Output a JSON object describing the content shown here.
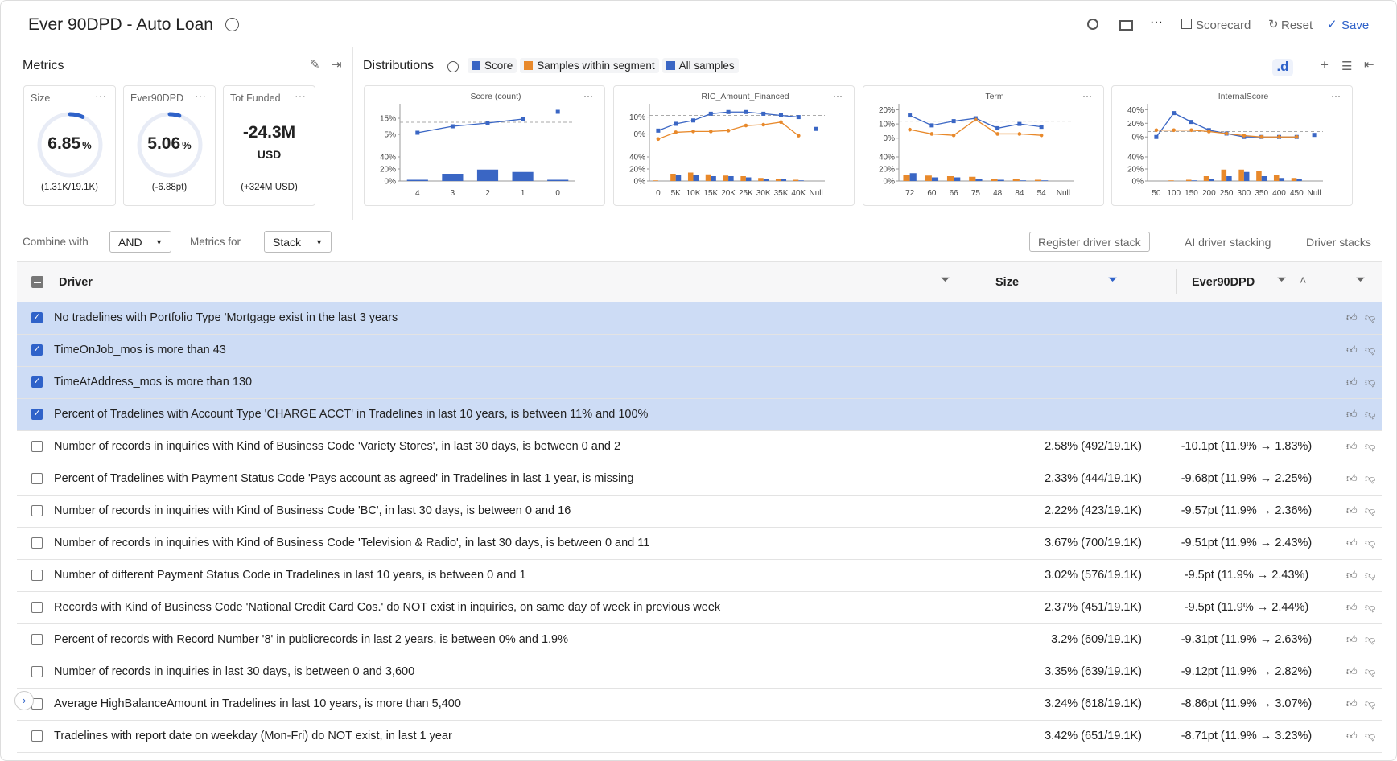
{
  "header": {
    "title": "Ever 90DPD - Auto Loan",
    "actions": [
      "Scorecard",
      "Reset",
      "Save"
    ]
  },
  "metrics": {
    "title": "Metrics",
    "cards": [
      {
        "label": "Size",
        "value": 6.85,
        "unit": "%",
        "sub": "(1.31K/19.1K)"
      },
      {
        "label": "Ever90DPD",
        "value": 5.06,
        "unit": "%",
        "sub": "(-6.88pt)"
      },
      {
        "label": "Tot Funded",
        "value": "-24.3M",
        "unit": "USD",
        "sub": "(+324M USD)"
      }
    ]
  },
  "distributions": {
    "title": "Distributions",
    "legend": [
      {
        "name": "Score",
        "color": "#3a66c4"
      },
      {
        "name": "Samples within segment",
        "color": "#e8892b"
      },
      {
        "name": "All samples",
        "color": "#3a66c4"
      }
    ],
    "charts": [
      {
        "type": "combo",
        "title": "Score (count)",
        "categories": [
          "4",
          "3",
          "2",
          "1",
          "0"
        ],
        "line_series": [
          {
            "name": "Score",
            "color": "#3a66c4",
            "values": [
              6,
              10,
              12,
              14.5,
              19
            ]
          }
        ],
        "bar_series": [
          {
            "name": "Score",
            "color": "#3a66c4",
            "values": [
              2,
              12,
              19,
              15,
              2
            ]
          }
        ],
        "ref": 12.5,
        "line_ylim": [
          0,
          22
        ],
        "line_yticks": [
          {
            "value": 5,
            "label": "5%"
          },
          {
            "value": 15,
            "label": "15%"
          }
        ],
        "bar_ylim": [
          0,
          40
        ],
        "bar_yticks": [
          {
            "value": 0,
            "label": "0%"
          },
          {
            "value": 20,
            "label": "20%"
          },
          {
            "value": 40,
            "label": "40%"
          }
        ]
      },
      {
        "type": "combo",
        "title": "RIC_Amount_Financed",
        "categories": [
          "0",
          "5K",
          "10K",
          "15K",
          "20K",
          "25K",
          "30K",
          "35K",
          "40K",
          "Null"
        ],
        "line_series": [
          {
            "name": "All samples",
            "color": "#3a66c4",
            "values": [
              2,
              6,
              8,
              12,
              13,
              13,
              12,
              11,
              10,
              3
            ]
          },
          {
            "name": "Samples within segment",
            "color": "#e8892b",
            "values": [
              -3,
              1,
              1.5,
              1.5,
              2,
              5,
              5.5,
              7,
              -1,
              null
            ]
          }
        ],
        "bar_series": [
          {
            "name": "Samples within segment",
            "color": "#e8892b",
            "values": [
              1,
              12,
              14,
              11,
              9,
              8,
              5,
              3,
              2,
              null
            ]
          },
          {
            "name": "All samples",
            "color": "#3a66c4",
            "values": [
              0,
              10,
              10,
              8,
              8,
              6,
              4,
              3,
              1,
              null
            ]
          }
        ],
        "ref": 11,
        "line_ylim": [
          -5,
          16
        ],
        "line_yticks": [
          {
            "value": 0,
            "label": "0%"
          },
          {
            "value": 10,
            "label": "10%"
          }
        ],
        "bar_ylim": [
          0,
          40
        ],
        "bar_yticks": [
          {
            "value": 0,
            "label": "0%"
          },
          {
            "value": 20,
            "label": "20%"
          },
          {
            "value": 40,
            "label": "40%"
          }
        ]
      },
      {
        "type": "combo",
        "title": "Term",
        "categories": [
          "72",
          "60",
          "66",
          "75",
          "48",
          "84",
          "54",
          "Null"
        ],
        "line_series": [
          {
            "name": "All samples",
            "color": "#3a66c4",
            "values": [
              16,
              9,
              12,
              14,
              7,
              10,
              8,
              null
            ]
          },
          {
            "name": "Samples within segment",
            "color": "#e8892b",
            "values": [
              6,
              3,
              2,
              13,
              3,
              3,
              2,
              null
            ]
          }
        ],
        "bar_series": [
          {
            "name": "Samples within segment",
            "color": "#e8892b",
            "values": [
              10,
              9,
              8,
              7,
              4,
              3,
              2,
              null
            ]
          },
          {
            "name": "All samples",
            "color": "#3a66c4",
            "values": [
              13,
              6,
              6,
              3,
              2,
              1,
              1,
              null
            ]
          }
        ],
        "ref": 12,
        "line_ylim": [
          -3,
          22
        ],
        "line_yticks": [
          {
            "value": 0,
            "label": "0%"
          },
          {
            "value": 10,
            "label": "10%"
          },
          {
            "value": 20,
            "label": "20%"
          }
        ],
        "bar_ylim": [
          0,
          40
        ],
        "bar_yticks": [
          {
            "value": 0,
            "label": "0%"
          },
          {
            "value": 20,
            "label": "20%"
          },
          {
            "value": 40,
            "label": "40%"
          }
        ]
      },
      {
        "type": "combo",
        "title": "InternalScore",
        "categories": [
          "50",
          "100",
          "150",
          "200",
          "250",
          "300",
          "350",
          "400",
          "450",
          "Null"
        ],
        "line_series": [
          {
            "name": "All samples",
            "color": "#3a66c4",
            "values": [
              0,
              35,
              22,
              10,
              5,
              0,
              0,
              0,
              0,
              3
            ]
          },
          {
            "name": "Samples within segment",
            "color": "#e8892b",
            "values": [
              10,
              10,
              10,
              8,
              5,
              2,
              0,
              0,
              0,
              null
            ]
          }
        ],
        "bar_series": [
          {
            "name": "Samples within segment",
            "color": "#e8892b",
            "values": [
              0,
              1,
              2,
              8,
              19,
              19,
              17,
              10,
              5,
              null
            ]
          },
          {
            "name": "All samples",
            "color": "#3a66c4",
            "values": [
              0,
              0,
              1,
              3,
              8,
              15,
              8,
              5,
              3,
              null
            ]
          }
        ],
        "ref": 8,
        "line_ylim": [
          -8,
          44
        ],
        "line_yticks": [
          {
            "value": 0,
            "label": "0%"
          },
          {
            "value": 20,
            "label": "20%"
          },
          {
            "value": 40,
            "label": "40%"
          }
        ],
        "bar_ylim": [
          0,
          40
        ],
        "bar_yticks": [
          {
            "value": 0,
            "label": "0%"
          },
          {
            "value": 20,
            "label": "20%"
          },
          {
            "value": 40,
            "label": "40%"
          }
        ]
      }
    ]
  },
  "controls": {
    "combine_label": "Combine with",
    "combine_value": "AND",
    "metrics_for_label": "Metrics for",
    "metrics_for_value": "Stack",
    "buttons": [
      "Register driver stack",
      "AI driver stacking",
      "Driver stacks"
    ]
  },
  "table": {
    "columns": [
      "Driver",
      "Size",
      "Ever90DPD"
    ],
    "rows": [
      {
        "driver": "No tradelines with Portfolio Type 'Mortgage exist in the last 3 years",
        "selected": true
      },
      {
        "driver": "TimeOnJob_mos is more than 43",
        "selected": true
      },
      {
        "driver": "TimeAtAddress_mos is more than 130",
        "selected": true
      },
      {
        "driver": "Percent of Tradelines with Account Type 'CHARGE ACCT' in Tradelines in last 10 years, is between 11% and 100%",
        "selected": true
      },
      {
        "driver": "Number of records in inquiries with Kind of Business Code 'Variety Stores', in last 30 days, is between 0 and 2",
        "size": "2.58% (492/19.1K)",
        "ever90dpd": "-10.1pt (11.9% → 1.83%)"
      },
      {
        "driver": "Percent of Tradelines with Payment Status Code 'Pays account as agreed' in Tradelines in last 1 year, is missing",
        "size": "2.33% (444/19.1K)",
        "ever90dpd": "-9.68pt (11.9% → 2.25%)"
      },
      {
        "driver": "Number of records in inquiries with Kind of Business Code 'BC', in last 30 days, is between 0 and 16",
        "size": "2.22% (423/19.1K)",
        "ever90dpd": "-9.57pt (11.9% → 2.36%)"
      },
      {
        "driver": "Number of records in inquiries with Kind of Business Code 'Television & Radio', in last 30 days, is between 0 and 11",
        "size": "3.67% (700/19.1K)",
        "ever90dpd": "-9.51pt (11.9% → 2.43%)"
      },
      {
        "driver": "Number of different Payment Status Code in Tradelines in last 10 years, is between 0 and 1",
        "size": "3.02% (576/19.1K)",
        "ever90dpd": "-9.5pt (11.9% → 2.43%)"
      },
      {
        "driver": "Records with Kind of Business Code 'National Credit Card Cos.' do NOT exist in inquiries, on same day of week in previous week",
        "size": "2.37% (451/19.1K)",
        "ever90dpd": "-9.5pt (11.9% → 2.44%)"
      },
      {
        "driver": "Percent of records with Record Number '8' in publicrecords in last 2 years, is between 0% and 1.9%",
        "size": "3.2% (609/19.1K)",
        "ever90dpd": "-9.31pt (11.9% → 2.63%)"
      },
      {
        "driver": "Number of records in inquiries in last 30 days, is between 0 and 3,600",
        "size": "3.35% (639/19.1K)",
        "ever90dpd": "-9.12pt (11.9% → 2.82%)"
      },
      {
        "driver": "Average HighBalanceAmount in Tradelines in last 10 years, is more than 5,400",
        "size": "3.24% (618/19.1K)",
        "ever90dpd": "-8.86pt (11.9% → 3.07%)"
      },
      {
        "driver": "Tradelines with report date on weekday (Mon-Fri) do NOT exist, in last 1 year",
        "size": "3.42% (651/19.1K)",
        "ever90dpd": "-8.71pt (11.9% → 3.23%)"
      }
    ]
  }
}
